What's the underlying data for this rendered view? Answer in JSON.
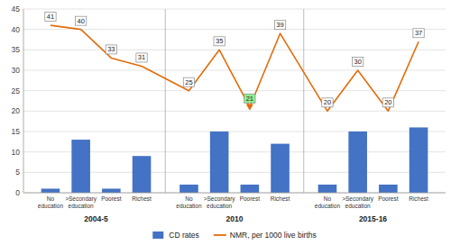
{
  "chart_data": {
    "type": "bar",
    "groups": [
      "2004-5",
      "2010",
      "2015-16"
    ],
    "categories": [
      "No\neducation",
      ">Secondary\neducation",
      "Poorest",
      "Richest",
      "No\neducation",
      ">Secondary\neducation",
      "Poorest",
      "Richest",
      "No\neducation",
      ">Secondary\neducation",
      "Poorest",
      "Richest"
    ],
    "series": [
      {
        "name": "CD rates",
        "type": "bar",
        "color": "#4472C4",
        "values": [
          1,
          13,
          1,
          9,
          2,
          15,
          2,
          12,
          2,
          15,
          2,
          16
        ]
      },
      {
        "name": "NMR, per 1000 live births",
        "type": "line",
        "color": "#E36C09",
        "data_labels": true,
        "colors": [
          "#ffffff",
          "#ffffff",
          "#ffffff",
          "#ffffff",
          "#ffffff",
          "#ffffff",
          "#90EE90",
          "#ffffff",
          "#ffffff",
          "#ffffff",
          "#ffffff",
          "#ffffff"
        ],
        "marker": [
          null,
          null,
          null,
          null,
          null,
          null,
          "triangle-down",
          null,
          null,
          null,
          null,
          null
        ],
        "values": [
          41,
          40,
          33,
          31,
          25,
          35,
          21,
          39,
          20,
          30,
          20,
          37
        ]
      }
    ],
    "ylim": [
      0,
      45
    ],
    "yticks": [
      0,
      5,
      10,
      15,
      20,
      25,
      30,
      35,
      40,
      45
    ],
    "grid": true,
    "legend": "bottom"
  }
}
